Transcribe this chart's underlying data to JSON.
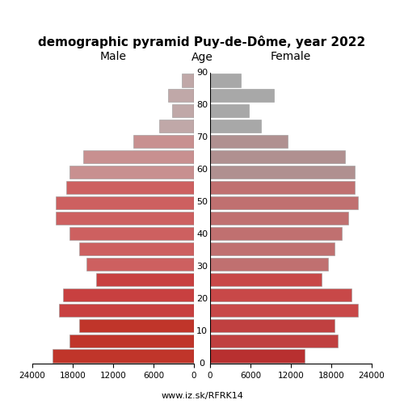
{
  "title": "demographic pyramid Puy-de-Dôme, year 2022",
  "xlabel_left": "Male",
  "xlabel_right": "Female",
  "xlabel_center": "Age",
  "footnote": "www.iz.sk/RFRK14",
  "ages": [
    0,
    5,
    10,
    15,
    20,
    25,
    30,
    35,
    40,
    45,
    50,
    55,
    60,
    65,
    70,
    75,
    80,
    85,
    90
  ],
  "male": [
    21000,
    18500,
    17000,
    20000,
    19500,
    14500,
    16000,
    17000,
    18500,
    20500,
    20500,
    19000,
    18500,
    16500,
    9000,
    5200,
    3200,
    3800,
    1800
  ],
  "female": [
    14000,
    19000,
    18500,
    22000,
    21000,
    16500,
    17500,
    18500,
    19500,
    20500,
    22000,
    21500,
    21500,
    20000,
    11500,
    7500,
    5800,
    9500,
    4500
  ],
  "xlim": 24000,
  "bar_height": 0.85,
  "colors_male": [
    "#c0352a",
    "#c0352a",
    "#c0352a",
    "#c84040",
    "#c84040",
    "#c84040",
    "#cd6060",
    "#cd6060",
    "#cd6060",
    "#cd6060",
    "#cd6060",
    "#cd6060",
    "#c89090",
    "#c89090",
    "#c89090",
    "#c0a8a8",
    "#c0a8a8",
    "#c0a8a8",
    "#c0a8a8"
  ],
  "colors_female": [
    "#b83030",
    "#c04040",
    "#c04040",
    "#c84848",
    "#c84848",
    "#c84848",
    "#c07070",
    "#c07070",
    "#c07070",
    "#c07070",
    "#c07070",
    "#c07070",
    "#b09090",
    "#b09090",
    "#b09090",
    "#a8a8a8",
    "#a8a8a8",
    "#a8a8a8",
    "#a8a8a8"
  ],
  "background": "#ffffff",
  "figsize": [
    5.0,
    5.0
  ],
  "dpi": 100
}
